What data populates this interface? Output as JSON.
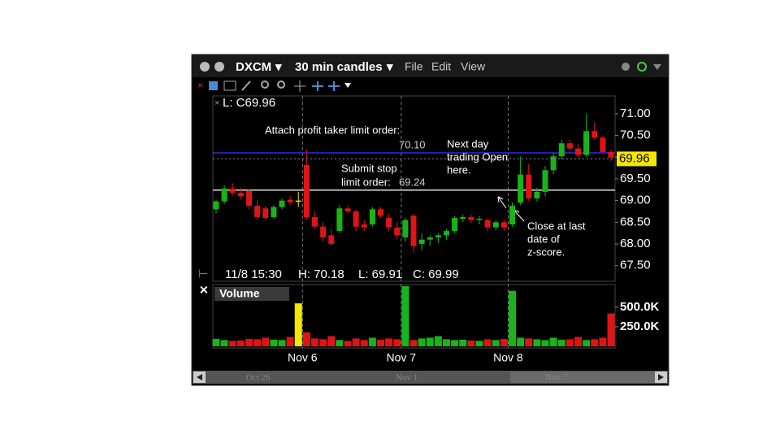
{
  "toolbar": {
    "symbol": "DXCM",
    "interval": "30 min candles",
    "menus": [
      "File",
      "Edit",
      "View"
    ]
  },
  "chart_data": [
    {
      "type": "candlestick",
      "legend": "L: C69.96",
      "open": [
        68.8,
        68.98,
        69.28,
        69.18,
        69.22,
        68.88,
        68.82,
        68.62,
        68.85,
        69.02,
        69.0,
        69.82,
        68.62,
        68.4,
        68.2,
        68.3,
        68.82,
        68.75,
        68.45,
        68.45,
        68.8,
        68.6,
        68.38,
        68.15,
        68.65,
        68.0,
        68.1,
        68.15,
        68.2,
        68.3,
        68.58,
        68.62,
        68.55,
        68.55,
        68.38,
        68.5,
        68.45,
        68.95,
        69.6,
        69.05,
        69.2,
        69.7,
        70.02,
        70.32,
        70.2,
        70.05,
        70.6,
        70.45,
        70.12
      ],
      "high": [
        69.02,
        69.35,
        69.4,
        69.3,
        69.26,
        69.0,
        68.88,
        68.9,
        69.05,
        69.1,
        69.2,
        70.18,
        68.75,
        68.5,
        68.35,
        68.9,
        68.88,
        68.8,
        68.55,
        68.85,
        68.85,
        68.7,
        68.5,
        68.6,
        68.7,
        68.25,
        68.2,
        68.25,
        68.35,
        68.65,
        68.68,
        68.68,
        68.65,
        68.6,
        68.55,
        68.55,
        68.95,
        70.02,
        69.85,
        69.3,
        69.8,
        70.1,
        70.4,
        70.4,
        70.3,
        71.0,
        70.8,
        70.5,
        70.18
      ],
      "low": [
        68.7,
        68.92,
        69.12,
        69.02,
        68.8,
        68.55,
        68.55,
        68.58,
        68.8,
        68.9,
        68.85,
        68.55,
        68.35,
        68.05,
        67.95,
        68.25,
        68.7,
        68.3,
        68.3,
        68.4,
        68.6,
        68.3,
        68.1,
        68.05,
        67.8,
        67.85,
        67.95,
        68.02,
        68.1,
        68.25,
        68.5,
        68.48,
        68.45,
        68.3,
        68.32,
        68.3,
        68.4,
        68.9,
        68.98,
        68.98,
        69.1,
        69.6,
        69.95,
        70.15,
        69.98,
        70.0,
        70.4,
        70.1,
        69.91
      ],
      "close": [
        68.98,
        69.28,
        69.18,
        69.1,
        68.88,
        68.62,
        68.6,
        68.85,
        69.0,
        68.96,
        69.0,
        68.62,
        68.4,
        68.15,
        68.0,
        68.82,
        68.75,
        68.4,
        68.38,
        68.8,
        68.65,
        68.38,
        68.2,
        68.55,
        67.95,
        68.1,
        68.15,
        68.2,
        68.3,
        68.6,
        68.62,
        68.55,
        68.58,
        68.38,
        68.5,
        68.38,
        68.88,
        69.6,
        69.05,
        69.2,
        69.7,
        70.02,
        70.32,
        70.2,
        70.05,
        70.6,
        70.45,
        70.12,
        69.99
      ],
      "up_color": "#18b418",
      "down_color": "#e01414",
      "flat_color": "#f5e600",
      "ylim": [
        67.14,
        71.41
      ],
      "yticks": [
        {
          "value": 67.5,
          "label": "67.50"
        },
        {
          "value": 68,
          "label": "68.00"
        },
        {
          "value": 68.5,
          "label": "68.50"
        },
        {
          "value": 69,
          "label": "69.00"
        },
        {
          "value": 69.5,
          "label": "69.50"
        },
        {
          "value": 70,
          "label": "70.00"
        },
        {
          "value": 70.5,
          "label": "70.50"
        },
        {
          "value": 71,
          "label": "71.00"
        }
      ],
      "levels": [
        {
          "value": 70.1,
          "label": "70.10",
          "color": "#2e2ee0",
          "text": [
            "Attach profit taker limit order:"
          ]
        },
        {
          "value": 69.24,
          "label": "69.24",
          "color": "#d8d8d8",
          "text": [
            "Submit stop",
            "limit order:"
          ]
        }
      ],
      "notes": [
        {
          "lines": [
            "Next day",
            "trading Open",
            "here."
          ]
        },
        {
          "lines": [
            "Close at last",
            "date of",
            "z-score."
          ]
        }
      ],
      "last_price": {
        "value": 69.96,
        "label": "69.96"
      },
      "info": [
        "11/8 15:30",
        "H: 70.18",
        "L: 69.91",
        "C: 69.99"
      ]
    },
    {
      "type": "bar",
      "title": "Volume",
      "categories": [
        null,
        null,
        null,
        null,
        null,
        null,
        null,
        null,
        null,
        null,
        null,
        "Nov 6",
        null,
        null,
        null,
        null,
        null,
        null,
        null,
        null,
        null,
        null,
        null,
        "Nov 7",
        null,
        null,
        null,
        null,
        null,
        null,
        null,
        null,
        null,
        null,
        null,
        null,
        "Nov 8",
        null,
        null,
        null,
        null,
        null,
        null,
        null,
        null,
        null,
        null,
        null,
        null
      ],
      "values": [
        95000,
        80000,
        70000,
        75000,
        95000,
        90000,
        110000,
        85000,
        80000,
        120000,
        550000,
        180000,
        100000,
        90000,
        130000,
        80000,
        70000,
        100000,
        80000,
        110000,
        85000,
        100000,
        90000,
        770000,
        80000,
        100000,
        110000,
        130000,
        90000,
        80000,
        85000,
        75000,
        70000,
        90000,
        80000,
        95000,
        710000,
        110000,
        100000,
        90000,
        80000,
        110000,
        85000,
        90000,
        120000,
        80000,
        90000,
        110000,
        420000
      ],
      "ylim": [
        0,
        770000
      ],
      "yticks": [
        {
          "value": 250000,
          "label": "250.0K"
        },
        {
          "value": 500000,
          "label": "500.0K"
        }
      ]
    }
  ],
  "navigator": {
    "labels": [
      "Oct 26",
      "Nov 1",
      "Nov 7"
    ]
  }
}
